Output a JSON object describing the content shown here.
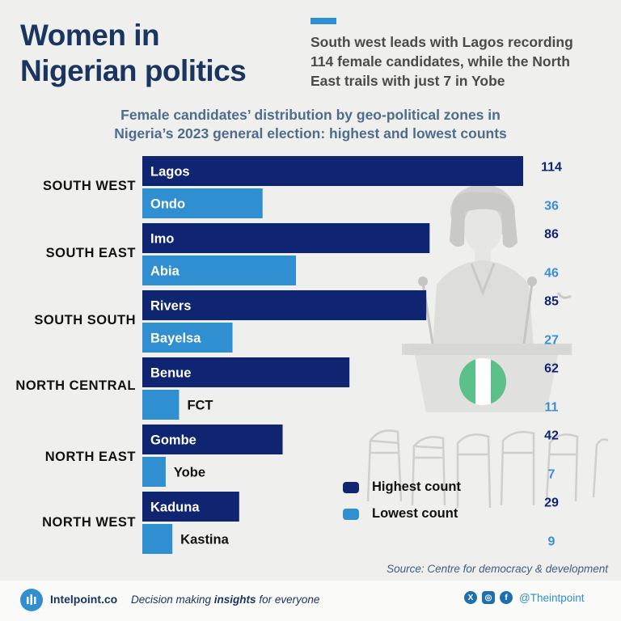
{
  "header": {
    "title_line1": "Women in",
    "title_line2": "Nigerian politics",
    "summary_line1": "South west leads with Lagos recording",
    "summary_line2": "114 female candidates, while the North",
    "summary_line3": "East trails with just 7 in Yobe"
  },
  "chart_data": {
    "type": "bar",
    "orientation": "horizontal",
    "title_line1": "Female candidates’ distribution by geo-political zones in",
    "title_line2": "Nigeria’s 2023 general election: highest and lowest counts",
    "groups": [
      {
        "zone": "SOUTH  WEST",
        "highest": {
          "state": "Lagos",
          "value": 114
        },
        "lowest": {
          "state": "Ondo",
          "value": 36
        }
      },
      {
        "zone": "SOUTH  EAST",
        "highest": {
          "state": "Imo",
          "value": 86
        },
        "lowest": {
          "state": "Abia",
          "value": 46
        }
      },
      {
        "zone": "SOUTH  SOUTH",
        "highest": {
          "state": "Rivers",
          "value": 85
        },
        "lowest": {
          "state": "Bayelsa",
          "value": 27
        }
      },
      {
        "zone": "NORTH  CENTRAL",
        "highest": {
          "state": "Benue",
          "value": 62
        },
        "lowest": {
          "state": "FCT",
          "value": 11
        }
      },
      {
        "zone": "NORTH  EAST",
        "highest": {
          "state": "Gombe",
          "value": 42
        },
        "lowest": {
          "state": "Yobe",
          "value": 7
        }
      },
      {
        "zone": "NORTH  WEST",
        "highest": {
          "state": "Kaduna",
          "value": 29
        },
        "lowest": {
          "state": "Kastina",
          "value": 9
        }
      }
    ],
    "series": [
      {
        "name": "Highest count",
        "color": "#102572"
      },
      {
        "name": "Lowest count",
        "color": "#2f8fd0"
      }
    ],
    "value_label_colors": {
      "highest": "#102572",
      "lowest": "#3a8ed6"
    },
    "legend_position": "bottom-right",
    "xlim": [
      0,
      114
    ],
    "grid": false
  },
  "source": "Source: Centre for democracy & development",
  "footer": {
    "brand": "Intelpoint.co",
    "tagline_before": "Decision making ",
    "tagline_em": "insights",
    "tagline_after": " for everyone",
    "handle": "@Theintpoint",
    "icons": [
      "x-icon",
      "instagram-icon",
      "facebook-icon"
    ]
  }
}
